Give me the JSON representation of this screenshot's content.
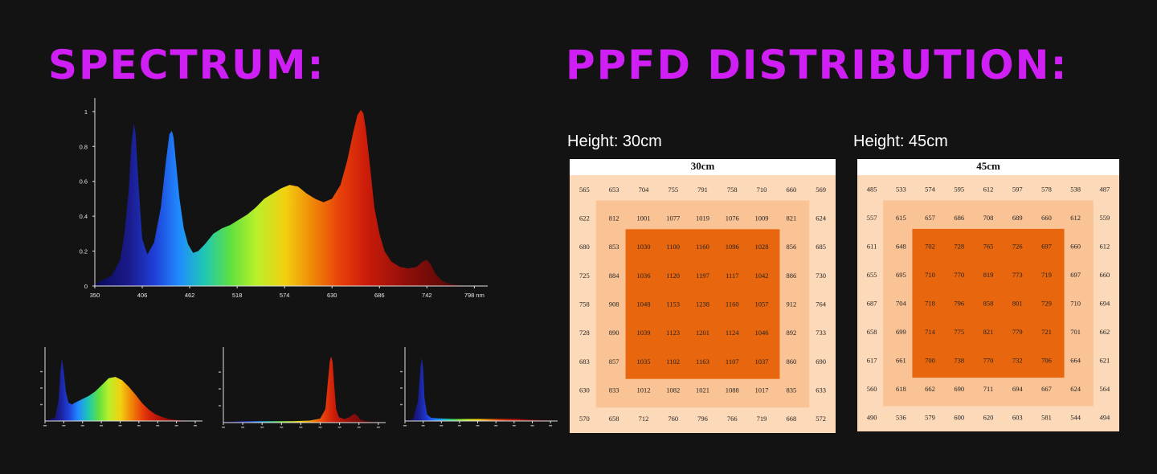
{
  "headings": {
    "spectrum": "SPECTRUM:",
    "ppfd": "PPFD DISTRIBUTION:"
  },
  "colors": {
    "heading": "#cf1ff5",
    "background": "#131313",
    "zone_outer": "#fcd9b8",
    "zone_middle": "#fac395",
    "zone_inner": "#e8660e"
  },
  "chart_data": [
    {
      "type": "area",
      "chart": "spectrum-main",
      "x_ticks": [
        "350",
        "406",
        "462",
        "518",
        "574",
        "630",
        "686",
        "742",
        "798 nm"
      ],
      "y_ticks": [
        "0",
        "0.2",
        "0.4",
        "0.6",
        "0.8",
        "1"
      ],
      "xlim": [
        350,
        810
      ],
      "ylim": [
        0,
        1.05
      ],
      "grid": false,
      "series": [
        {
          "x": [
            350,
            370,
            380,
            385,
            390,
            393,
            396,
            398,
            402,
            406,
            412,
            420,
            428,
            434,
            438,
            441,
            443,
            446,
            450,
            455,
            460,
            466,
            472,
            480,
            490,
            500,
            510,
            520,
            530,
            540,
            550,
            560,
            570,
            580,
            590,
            600,
            610,
            620,
            630,
            640,
            648,
            655,
            660,
            664,
            667,
            670,
            675,
            680,
            686,
            692,
            700,
            710,
            720,
            730,
            737,
            742,
            747,
            752,
            760,
            770,
            780,
            790,
            800
          ],
          "y": [
            0.01,
            0.06,
            0.15,
            0.3,
            0.55,
            0.8,
            0.93,
            0.88,
            0.55,
            0.27,
            0.18,
            0.25,
            0.45,
            0.72,
            0.87,
            0.89,
            0.85,
            0.7,
            0.5,
            0.33,
            0.24,
            0.19,
            0.2,
            0.24,
            0.3,
            0.33,
            0.35,
            0.38,
            0.41,
            0.45,
            0.5,
            0.53,
            0.56,
            0.58,
            0.57,
            0.53,
            0.5,
            0.48,
            0.5,
            0.58,
            0.72,
            0.88,
            0.98,
            1.01,
            0.99,
            0.9,
            0.68,
            0.45,
            0.3,
            0.2,
            0.14,
            0.11,
            0.1,
            0.11,
            0.14,
            0.15,
            0.12,
            0.07,
            0.03,
            0.01,
            0.005,
            0.002,
            0.001
          ]
        }
      ]
    },
    {
      "type": "area",
      "chart": "spectrum-mini-1",
      "x_ticks": [
        "",
        "",
        "",
        "",
        "",
        "",
        "",
        "",
        ""
      ],
      "xlim": [
        350,
        810
      ],
      "ylim": [
        0,
        1.05
      ],
      "series": [
        {
          "x": [
            350,
            380,
            390,
            396,
            400,
            406,
            412,
            420,
            430,
            440,
            460,
            480,
            500,
            520,
            540,
            560,
            580,
            600,
            620,
            640,
            660,
            680,
            700,
            720,
            740,
            760,
            780,
            800
          ],
          "y": [
            0.0,
            0.05,
            0.3,
            0.75,
            0.95,
            0.75,
            0.45,
            0.28,
            0.25,
            0.28,
            0.33,
            0.38,
            0.45,
            0.55,
            0.65,
            0.67,
            0.62,
            0.52,
            0.4,
            0.27,
            0.17,
            0.1,
            0.06,
            0.03,
            0.02,
            0.01,
            0.005,
            0.0
          ]
        }
      ]
    },
    {
      "type": "area",
      "chart": "spectrum-mini-2",
      "x_ticks": [
        "",
        "",
        "",
        "",
        "",
        "",
        "",
        "",
        ""
      ],
      "xlim": [
        350,
        810
      ],
      "ylim": [
        0,
        1.05
      ],
      "series": [
        {
          "x": [
            350,
            400,
            450,
            500,
            550,
            600,
            630,
            645,
            652,
            658,
            662,
            666,
            670,
            676,
            684,
            700,
            715,
            725,
            730,
            738,
            745,
            760,
            800
          ],
          "y": [
            0.01,
            0.02,
            0.02,
            0.02,
            0.02,
            0.03,
            0.06,
            0.2,
            0.6,
            0.92,
            0.98,
            0.9,
            0.6,
            0.2,
            0.08,
            0.05,
            0.08,
            0.12,
            0.13,
            0.1,
            0.05,
            0.02,
            0.01
          ]
        }
      ]
    },
    {
      "type": "area",
      "chart": "spectrum-mini-3",
      "x_ticks": [
        "",
        "",
        "",
        "",
        "",
        "",
        "",
        "",
        ""
      ],
      "xlim": [
        350,
        810
      ],
      "ylim": [
        0,
        1.05
      ],
      "series": [
        {
          "x": [
            350,
            375,
            390,
            398,
            402,
            406,
            410,
            418,
            430,
            450,
            500,
            550,
            600,
            650,
            700,
            750,
            800
          ],
          "y": [
            0.0,
            0.03,
            0.3,
            0.82,
            0.96,
            0.8,
            0.35,
            0.1,
            0.05,
            0.04,
            0.03,
            0.03,
            0.03,
            0.03,
            0.03,
            0.02,
            0.01
          ]
        }
      ]
    },
    {
      "type": "heatmap",
      "chart": "ppfd-grid-30",
      "title": "30cm",
      "label": "Height: 30cm",
      "rows": [
        [
          565,
          653,
          704,
          755,
          791,
          758,
          710,
          660,
          569
        ],
        [
          622,
          812,
          1001,
          1077,
          1019,
          1076,
          1009,
          821,
          624
        ],
        [
          680,
          853,
          1030,
          1100,
          1160,
          1096,
          1028,
          856,
          685
        ],
        [
          725,
          884,
          1036,
          1120,
          1197,
          1117,
          1042,
          886,
          730
        ],
        [
          758,
          908,
          1048,
          1153,
          1238,
          1160,
          1057,
          912,
          764
        ],
        [
          728,
          890,
          1039,
          1123,
          1201,
          1124,
          1046,
          892,
          733
        ],
        [
          683,
          857,
          1035,
          1102,
          1163,
          1107,
          1037,
          860,
          690
        ],
        [
          630,
          833,
          1012,
          1082,
          1021,
          1088,
          1017,
          835,
          633
        ],
        [
          570,
          658,
          712,
          760,
          796,
          766,
          719,
          668,
          572
        ]
      ]
    },
    {
      "type": "heatmap",
      "chart": "ppfd-grid-45",
      "title": "45cm",
      "label": "Height: 45cm",
      "rows": [
        [
          485,
          533,
          574,
          595,
          612,
          597,
          578,
          538,
          487
        ],
        [
          557,
          615,
          657,
          686,
          708,
          689,
          660,
          612,
          559
        ],
        [
          611,
          648,
          702,
          728,
          765,
          726,
          697,
          660,
          612
        ],
        [
          655,
          695,
          710,
          770,
          819,
          773,
          719,
          697,
          660
        ],
        [
          687,
          704,
          718,
          796,
          858,
          801,
          729,
          710,
          694
        ],
        [
          658,
          699,
          714,
          775,
          821,
          779,
          721,
          701,
          662
        ],
        [
          617,
          661,
          700,
          738,
          770,
          732,
          706,
          664,
          621
        ],
        [
          560,
          618,
          662,
          690,
          711,
          694,
          667,
          624,
          564
        ],
        [
          490,
          536,
          579,
          600,
          620,
          603,
          581,
          544,
          494
        ]
      ]
    }
  ]
}
